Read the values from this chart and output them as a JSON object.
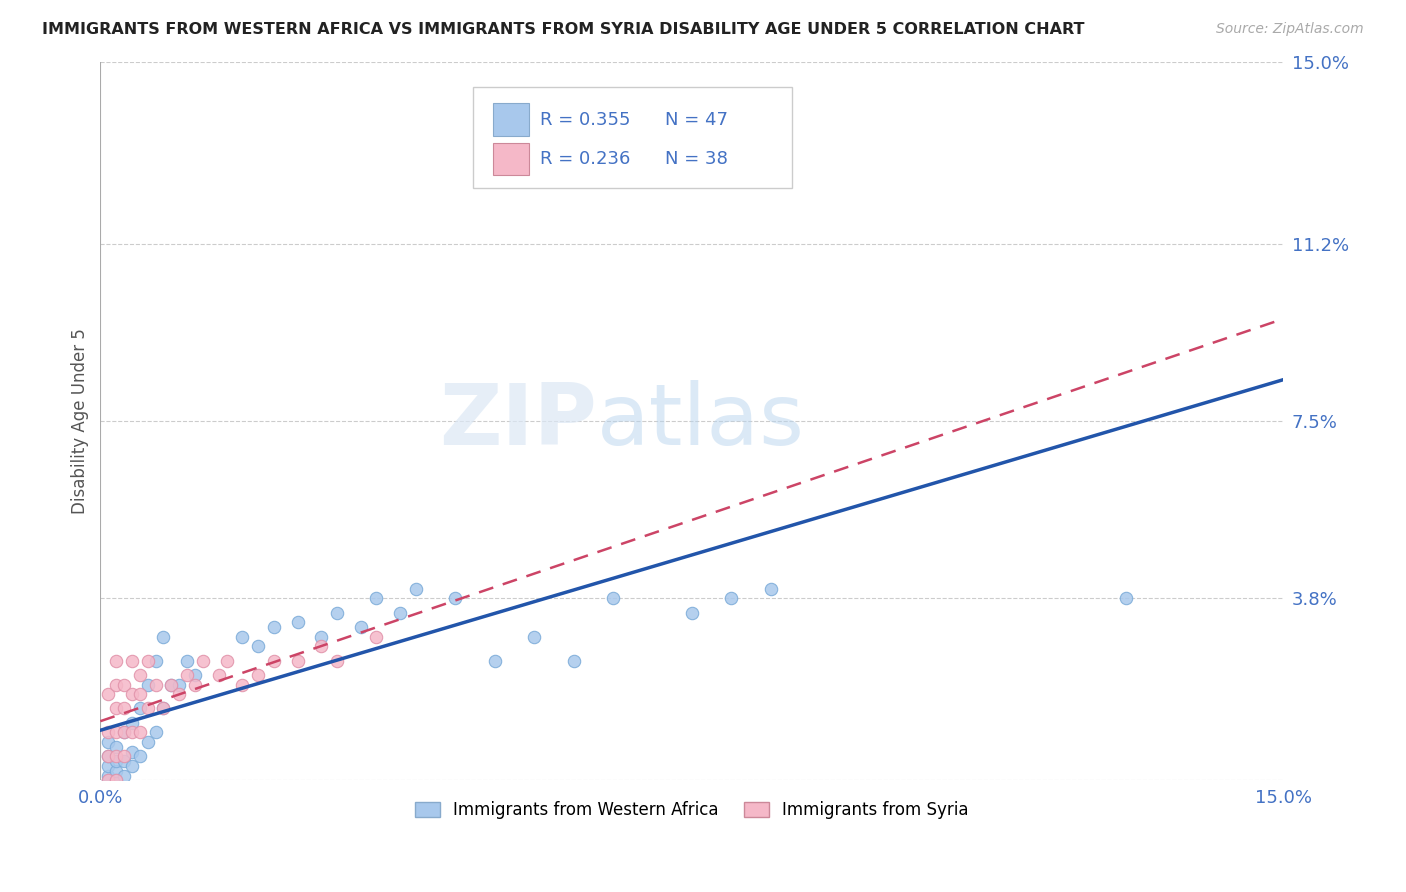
{
  "title": "IMMIGRANTS FROM WESTERN AFRICA VS IMMIGRANTS FROM SYRIA DISABILITY AGE UNDER 5 CORRELATION CHART",
  "source_text": "Source: ZipAtlas.com",
  "ylabel": "Disability Age Under 5",
  "xlim": [
    0.0,
    0.15
  ],
  "ylim": [
    0.0,
    0.15
  ],
  "yticks": [
    0.0,
    0.038,
    0.075,
    0.112,
    0.15
  ],
  "ytick_labels": [
    "",
    "3.8%",
    "7.5%",
    "11.2%",
    "15.0%"
  ],
  "xtick_labels": [
    "0.0%",
    "15.0%"
  ],
  "series1_color": "#a8c8ec",
  "series1_line_color": "#2255aa",
  "series2_color": "#f5b8c8",
  "series2_line_color": "#cc4466",
  "R1": 0.355,
  "N1": 47,
  "R2": 0.236,
  "N2": 38,
  "watermark_zip": "ZIP",
  "watermark_atlas": "atlas",
  "background_color": "#ffffff",
  "grid_color": "#cccccc",
  "title_color": "#222222",
  "axis_label_color": "#4472c4",
  "series1_x": [
    0.001,
    0.001,
    0.001,
    0.001,
    0.001,
    0.002,
    0.002,
    0.002,
    0.002,
    0.003,
    0.003,
    0.003,
    0.004,
    0.004,
    0.004,
    0.005,
    0.005,
    0.006,
    0.006,
    0.007,
    0.007,
    0.008,
    0.008,
    0.009,
    0.01,
    0.011,
    0.012,
    0.018,
    0.02,
    0.022,
    0.025,
    0.028,
    0.03,
    0.033,
    0.035,
    0.038,
    0.04,
    0.045,
    0.05,
    0.055,
    0.06,
    0.065,
    0.075,
    0.08,
    0.085,
    0.13,
    0.085
  ],
  "series1_y": [
    0.0,
    0.001,
    0.003,
    0.005,
    0.008,
    0.0,
    0.002,
    0.004,
    0.007,
    0.001,
    0.004,
    0.01,
    0.003,
    0.006,
    0.012,
    0.005,
    0.015,
    0.008,
    0.02,
    0.01,
    0.025,
    0.015,
    0.03,
    0.02,
    0.02,
    0.025,
    0.022,
    0.03,
    0.028,
    0.032,
    0.033,
    0.03,
    0.035,
    0.032,
    0.038,
    0.035,
    0.04,
    0.038,
    0.025,
    0.03,
    0.025,
    0.038,
    0.035,
    0.038,
    0.04,
    0.038,
    0.13
  ],
  "series2_x": [
    0.001,
    0.001,
    0.001,
    0.001,
    0.002,
    0.002,
    0.002,
    0.002,
    0.002,
    0.002,
    0.003,
    0.003,
    0.003,
    0.003,
    0.004,
    0.004,
    0.004,
    0.005,
    0.005,
    0.005,
    0.006,
    0.006,
    0.007,
    0.008,
    0.009,
    0.01,
    0.011,
    0.012,
    0.013,
    0.015,
    0.016,
    0.018,
    0.02,
    0.022,
    0.025,
    0.028,
    0.03,
    0.035
  ],
  "series2_y": [
    0.0,
    0.005,
    0.01,
    0.018,
    0.0,
    0.005,
    0.01,
    0.015,
    0.02,
    0.025,
    0.005,
    0.01,
    0.015,
    0.02,
    0.01,
    0.018,
    0.025,
    0.01,
    0.018,
    0.022,
    0.015,
    0.025,
    0.02,
    0.015,
    0.02,
    0.018,
    0.022,
    0.02,
    0.025,
    0.022,
    0.025,
    0.02,
    0.022,
    0.025,
    0.025,
    0.028,
    0.025,
    0.03
  ],
  "legend_label1": "Immigrants from Western Africa",
  "legend_label2": "Immigrants from Syria"
}
